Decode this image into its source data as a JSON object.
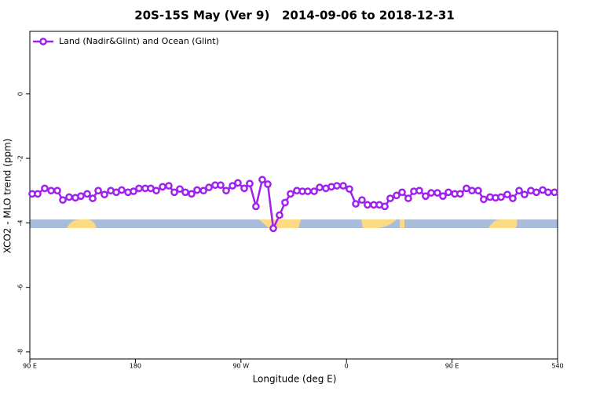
{
  "chart_data": {
    "type": "line",
    "title": "20S-15S May (Ver 9)   2014-09-06 to 2018-12-31",
    "x_label": "Longitude (deg E)",
    "y_label": "XCO2 - MLO trend (ppm)",
    "legend_position": "top-left",
    "xlim": [
      90,
      540
    ],
    "ylim": [
      -8.22,
      1.94
    ],
    "xticks": [
      {
        "value": 90,
        "label": "90 E"
      },
      180,
      {
        "value": 270,
        "label": "90 W"
      },
      {
        "value": 360,
        "label": "0"
      },
      {
        "value": 450,
        "label": "90 E"
      },
      540
    ],
    "yticks": [
      0,
      -2,
      -4,
      -6,
      -8
    ],
    "series": [
      {
        "name": "Land (Nadir&Glint) and Ocean (Glint)",
        "color": "#a020f0",
        "x": [
          92.0,
          96.7,
          102.7,
          108.1,
          113.4,
          118.1,
          123.5,
          128.8,
          133.5,
          138.9,
          143.6,
          148.3,
          153.6,
          159.0,
          163.7,
          168.3,
          173.7,
          178.4,
          183.1,
          188.4,
          193.1,
          197.8,
          203.2,
          208.5,
          213.2,
          217.9,
          222.6,
          227.9,
          232.6,
          238.0,
          242.7,
          248.0,
          252.7,
          257.4,
          262.8,
          267.4,
          272.8,
          277.5,
          282.8,
          288.2,
          292.9,
          297.6,
          302.9,
          307.6,
          312.3,
          317.7,
          322.4,
          327.0,
          332.4,
          337.1,
          342.4,
          347.1,
          351.8,
          357.2,
          362.5,
          367.9,
          373.2,
          377.9,
          383.3,
          388.0,
          392.7,
          397.3,
          402.7,
          407.4,
          412.7,
          417.4,
          422.1,
          427.5,
          432.2,
          437.5,
          442.2,
          446.9,
          452.3,
          456.9,
          462.3,
          467.0,
          472.3,
          477.0,
          482.4,
          487.1,
          491.8,
          497.1,
          501.8,
          507.2,
          511.8,
          517.2,
          521.9,
          527.3,
          531.9,
          537.3
        ],
        "values": [
          -3.1,
          -3.1,
          -2.93,
          -3.0,
          -3.0,
          -3.29,
          -3.2,
          -3.22,
          -3.17,
          -3.1,
          -3.24,
          -3.0,
          -3.12,
          -3.0,
          -3.05,
          -2.98,
          -3.05,
          -3.02,
          -2.93,
          -2.93,
          -2.93,
          -3.0,
          -2.88,
          -2.85,
          -3.05,
          -2.95,
          -3.05,
          -3.1,
          -2.98,
          -3.0,
          -2.9,
          -2.83,
          -2.83,
          -3.0,
          -2.85,
          -2.76,
          -2.93,
          -2.78,
          -3.49,
          -2.66,
          -2.8,
          -4.17,
          -3.76,
          -3.37,
          -3.1,
          -3.0,
          -3.02,
          -3.02,
          -3.02,
          -2.9,
          -2.93,
          -2.88,
          -2.85,
          -2.85,
          -2.95,
          -3.41,
          -3.29,
          -3.44,
          -3.44,
          -3.44,
          -3.49,
          -3.24,
          -3.15,
          -3.05,
          -3.24,
          -3.02,
          -3.0,
          -3.17,
          -3.07,
          -3.07,
          -3.17,
          -3.05,
          -3.1,
          -3.1,
          -2.93,
          -3.0,
          -3.0,
          -3.27,
          -3.2,
          -3.22,
          -3.2,
          -3.12,
          -3.24,
          -3.0,
          -3.12,
          -3.0,
          -3.05,
          -2.98,
          -3.05,
          -3.05
        ]
      }
    ]
  }
}
